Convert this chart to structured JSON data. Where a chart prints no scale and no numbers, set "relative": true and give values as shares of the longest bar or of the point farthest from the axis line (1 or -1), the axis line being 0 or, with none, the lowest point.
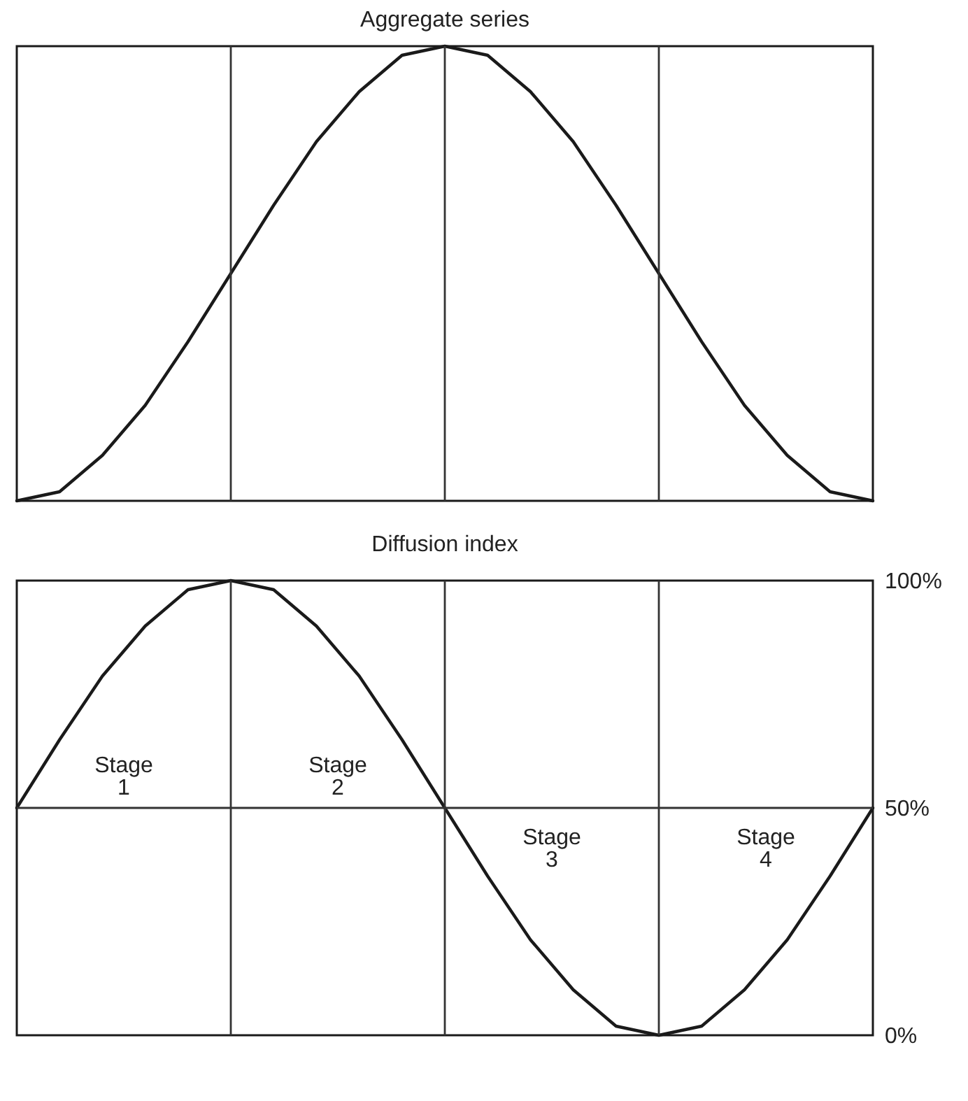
{
  "chart_data": [
    {
      "type": "line",
      "title": "Aggregate series",
      "relative": true,
      "grid": "x",
      "categories": [
        null,
        null,
        null,
        null,
        null,
        null,
        null,
        null,
        null,
        null,
        null,
        null,
        null,
        null,
        null,
        null,
        null,
        null,
        null,
        null,
        null
      ],
      "series": [
        {
          "color": "#1a1a1a",
          "values": [
            0,
            0.02,
            0.1,
            0.21,
            0.35,
            0.5,
            0.65,
            0.79,
            0.9,
            0.98,
            1,
            0.98,
            0.9,
            0.79,
            0.65,
            0.5,
            0.35,
            0.21,
            0.1,
            0.02,
            0
          ]
        }
      ]
    },
    {
      "type": "line",
      "title": "Diffusion index",
      "grid": "x",
      "ylim": [
        0,
        100
      ],
      "yticks": [
        {
          "value": 0,
          "label": "0%"
        },
        {
          "value": 50,
          "label": "50%"
        },
        {
          "value": 100,
          "label": "100%"
        }
      ],
      "categories": [
        null,
        null,
        null,
        null,
        null,
        null,
        null,
        null,
        null,
        null,
        null,
        null,
        null,
        null,
        null,
        null,
        null,
        null,
        null,
        null,
        null
      ],
      "series": [
        {
          "color": "#1a1a1a",
          "values": [
            50,
            65,
            79,
            90,
            98,
            100,
            98,
            90,
            79,
            65,
            50,
            35,
            21,
            10,
            2,
            0,
            2,
            10,
            21,
            35,
            50
          ]
        }
      ],
      "ref_lines": [
        {
          "axis": "y",
          "value": 50
        }
      ],
      "annotations": [
        "Stage 1",
        "Stage 2",
        "Stage 3",
        "Stage 4"
      ]
    }
  ]
}
